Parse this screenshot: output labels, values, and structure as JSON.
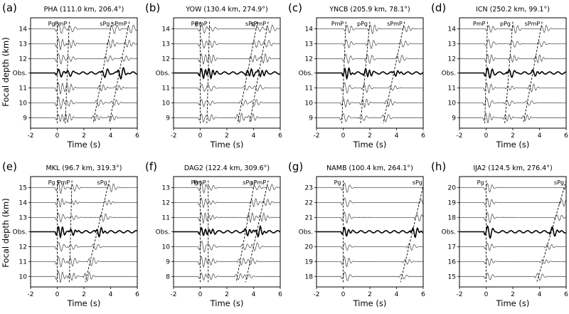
{
  "figure": {
    "ylabel": "Focal depth (km)"
  },
  "chart_data": [
    {
      "type": "line",
      "letter": "(a)",
      "title": "PHA (111.0 km, 206.4°)",
      "xlabel": "Time (s)",
      "xlim": [
        -2,
        6
      ],
      "xticks": [
        -2,
        0,
        2,
        4,
        6
      ],
      "ytick_labels": [
        "14",
        "13",
        "12",
        "Obs.",
        "11",
        "10",
        "9"
      ],
      "phases": [
        {
          "name": "Pg",
          "t_top": 0.0,
          "t_bot": 0.0
        },
        {
          "name": "PmP",
          "t_top": 0.9,
          "t_bot": 0.6
        },
        {
          "name": "sPg",
          "t_top": 4.1,
          "t_bot": 2.7
        },
        {
          "name": "sPmP",
          "t_top": 5.4,
          "t_bot": 3.9
        }
      ],
      "seed": 1
    },
    {
      "type": "line",
      "letter": "(b)",
      "title": "YOW (130.4 km, 274.9°)",
      "xlabel": "Time (s)",
      "xlim": [
        -2,
        6
      ],
      "xticks": [
        -2,
        0,
        2,
        4,
        6
      ],
      "ytick_labels": [
        "14",
        "13",
        "12",
        "Obs.",
        "11",
        "10",
        "9"
      ],
      "phases": [
        {
          "name": "Pg",
          "t_top": 0.0,
          "t_bot": 0.0
        },
        {
          "name": "PmP",
          "t_top": 0.7,
          "t_bot": 0.5
        },
        {
          "name": "sPg",
          "t_top": 4.3,
          "t_bot": 2.8
        },
        {
          "name": "sPmP",
          "t_top": 5.1,
          "t_bot": 3.7
        }
      ],
      "seed": 2
    },
    {
      "type": "line",
      "letter": "(c)",
      "title": "YNCB (205.9 km, 78.1°)",
      "xlabel": "Time (s)",
      "xlim": [
        -2,
        6
      ],
      "xticks": [
        -2,
        0,
        2,
        4,
        6
      ],
      "ytick_labels": [
        "14",
        "13",
        "12",
        "Obs.",
        "11",
        "10",
        "9"
      ],
      "phases": [
        {
          "name": "PmP",
          "t_top": 0.2,
          "t_bot": -0.1
        },
        {
          "name": "pPg",
          "t_top": 2.0,
          "t_bot": 1.3
        },
        {
          "name": "sPmP",
          "t_top": 4.6,
          "t_bot": 3.0
        }
      ],
      "seed": 3
    },
    {
      "type": "line",
      "letter": "(d)",
      "title": "ICN (250.2 km, 99.1°)",
      "xlabel": "Time (s)",
      "xlim": [
        -2,
        6
      ],
      "xticks": [
        -2,
        0,
        2,
        4,
        6
      ],
      "ytick_labels": [
        "14",
        "13",
        "12",
        "Obs.",
        "11",
        "10",
        "9"
      ],
      "phases": [
        {
          "name": "PmP",
          "t_top": 0.1,
          "t_bot": -0.1
        },
        {
          "name": "pPg",
          "t_top": 2.0,
          "t_bot": 1.4
        },
        {
          "name": "sPmP",
          "t_top": 4.2,
          "t_bot": 2.8
        }
      ],
      "seed": 4
    },
    {
      "type": "line",
      "letter": "(e)",
      "title": "MKL (96.7 km, 319.3°)",
      "xlabel": "Time (s)",
      "xlim": [
        -2,
        6
      ],
      "xticks": [
        -2,
        0,
        2,
        4,
        6
      ],
      "ytick_labels": [
        "15",
        "14",
        "13",
        "Obs.",
        "12",
        "11",
        "10"
      ],
      "phases": [
        {
          "name": "Pg",
          "t_top": 0.0,
          "t_bot": 0.0
        },
        {
          "name": "PmP",
          "t_top": 1.1,
          "t_bot": 0.9
        },
        {
          "name": "sPg",
          "t_top": 3.9,
          "t_bot": 2.1
        }
      ],
      "seed": 5
    },
    {
      "type": "line",
      "letter": "(f)",
      "title": "DAG2 (122.4 km, 309.6°)",
      "xlabel": "Time (s)",
      "xlim": [
        -2,
        6
      ],
      "xticks": [
        -2,
        0,
        2,
        4,
        6
      ],
      "ytick_labels": [
        "13",
        "12",
        "11",
        "Obs.",
        "10",
        "9",
        "8"
      ],
      "phases": [
        {
          "name": "Pg",
          "t_top": 0.0,
          "t_bot": 0.0
        },
        {
          "name": "PmP",
          "t_top": 0.6,
          "t_bot": 0.6
        },
        {
          "name": "sPg",
          "t_top": 4.1,
          "t_bot": 2.7
        },
        {
          "name": "sPmP",
          "t_top": 5.1,
          "t_bot": 3.4
        }
      ],
      "seed": 6
    },
    {
      "type": "line",
      "letter": "(g)",
      "title": "NAMB (100.4 km, 264.1°)",
      "xlabel": "Time (s)",
      "xlim": [
        -2,
        6
      ],
      "xticks": [
        -2,
        0,
        2,
        4,
        6
      ],
      "ytick_labels": [
        "23",
        "22",
        "21",
        "Obs.",
        "20",
        "19",
        "18"
      ],
      "phases": [
        {
          "name": "Pg",
          "t_top": 0.0,
          "t_bot": 0.0
        },
        {
          "name": "sPg",
          "t_top": 6.1,
          "t_bot": 4.3
        }
      ],
      "seed": 7
    },
    {
      "type": "line",
      "letter": "(h)",
      "title": "IJA2 (124.5 km, 276.4°)",
      "xlabel": "Time (s)",
      "xlim": [
        -2,
        6
      ],
      "xticks": [
        -2,
        0,
        2,
        4,
        6
      ],
      "ytick_labels": [
        "20",
        "19",
        "18",
        "Obs.",
        "17",
        "16",
        "15"
      ],
      "phases": [
        {
          "name": "Pg",
          "t_top": 0.0,
          "t_bot": 0.0
        },
        {
          "name": "sPg",
          "t_top": 6.0,
          "t_bot": 3.8
        }
      ],
      "seed": 8
    }
  ]
}
